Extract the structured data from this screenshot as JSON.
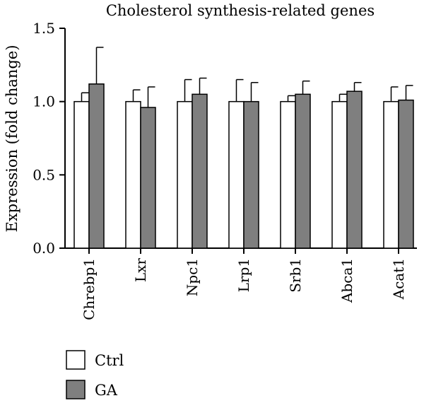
{
  "chart_data": {
    "type": "bar",
    "title": "Cholesterol synthesis-related genes",
    "xlabel": "",
    "ylabel": "Expression (fold change)",
    "ylim": [
      0,
      1.5
    ],
    "yticks": [
      "0.0",
      "0.5",
      "1.0",
      "1.5"
    ],
    "categories": [
      "Chrebp1",
      "Lxr",
      "Npc1",
      "Lrp1",
      "Srb1",
      "Abca1",
      "Acat1"
    ],
    "series": [
      {
        "name": "Ctrl",
        "color": "#ffffff",
        "values": [
          1.0,
          1.0,
          1.0,
          1.0,
          1.0,
          1.0,
          1.0
        ],
        "errors": [
          0.06,
          0.08,
          0.15,
          0.15,
          0.04,
          0.05,
          0.1
        ]
      },
      {
        "name": "GA",
        "color": "#7f7f7f",
        "values": [
          1.12,
          0.96,
          1.05,
          1.0,
          1.05,
          1.07,
          1.01
        ],
        "errors": [
          0.25,
          0.14,
          0.11,
          0.13,
          0.09,
          0.06,
          0.1
        ]
      }
    ],
    "grid": false,
    "legend_position": "bottom-left"
  }
}
